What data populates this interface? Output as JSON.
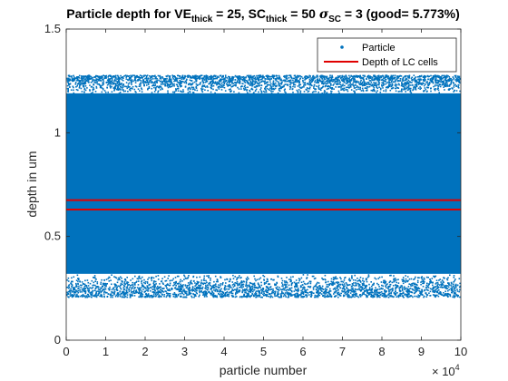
{
  "chart_data": {
    "type": "scatter",
    "title_parts": {
      "p1": "Particle depth for VE",
      "sub1": "thick",
      "p2": " = 25, SC",
      "sub2": "thick",
      "p3": " = 50 ",
      "sigma": "σ",
      "sub3": "SC",
      "p4": " = 3 (good= 5.773%)"
    },
    "xlabel": "particle number",
    "ylabel": "depth in um",
    "x_exponent_base": "× 10",
    "x_exponent_power": "4",
    "xlim": [
      0,
      10
    ],
    "ylim": [
      0,
      1.5
    ],
    "xticks": [
      "0",
      "1",
      "2",
      "3",
      "4",
      "5",
      "6",
      "7",
      "8",
      "9",
      "10"
    ],
    "yticks": [
      "0",
      "0.5",
      "1",
      "1.5"
    ],
    "grid": false,
    "legend_position": "top-right",
    "series": [
      {
        "name": "Particle",
        "marker": "point",
        "color": "#0072BD",
        "x_range": [
          0,
          100000
        ],
        "y_range": [
          0.21,
          1.28
        ],
        "count": 100000
      },
      {
        "name": "Depth of LC cells",
        "type": "hline",
        "color": "#E00000",
        "y_values": [
          0.63,
          0.675
        ]
      }
    ]
  }
}
